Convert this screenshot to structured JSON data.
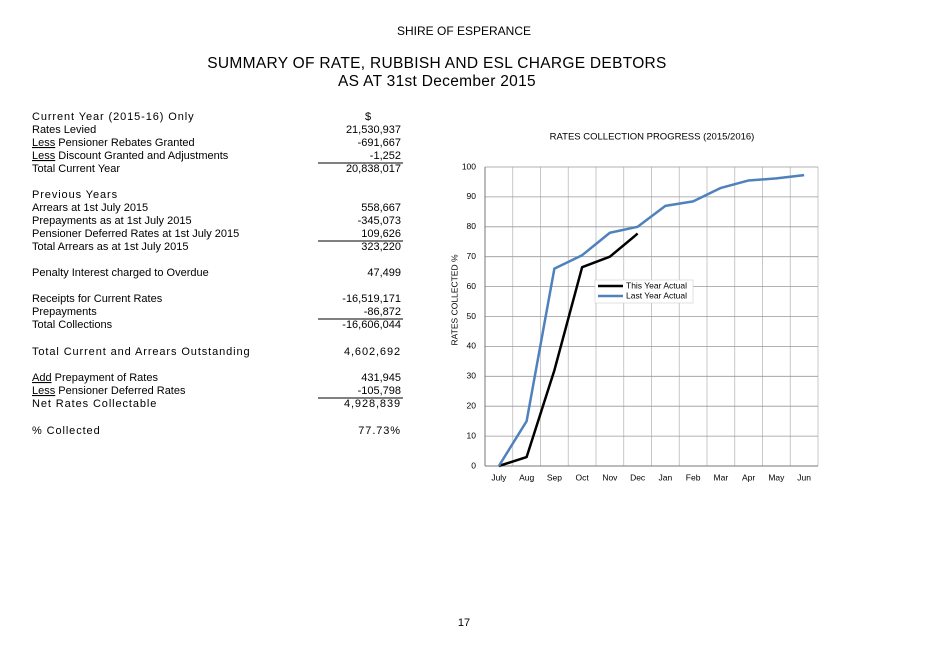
{
  "header": {
    "organisation": "SHIRE OF ESPERANCE",
    "title": "SUMMARY OF RATE, RUBBISH AND ESL CHARGE DEBTORS",
    "subtitle": "AS AT 31st December 2015"
  },
  "table": {
    "rows": [
      {
        "label": "Current Year (2015-16) Only",
        "value": "$",
        "emphasis": true
      },
      {
        "label": "Rates Levied",
        "value": "21,530,937"
      },
      {
        "prefix": "Less",
        "label": " Pensioner Rebates Granted",
        "value": "-691,667"
      },
      {
        "prefix": "Less",
        "label": " Discount Granted and Adjustments",
        "value": "-1,252",
        "underline": true
      },
      {
        "label": "Total Current Year",
        "value": "20,838,017"
      },
      {
        "label": "Previous Years",
        "emphasis": true
      },
      {
        "label": "Arrears at 1st July 2015",
        "value": "558,667"
      },
      {
        "label": "Prepayments as at 1st July 2015",
        "value": "-345,073"
      },
      {
        "label": "Pensioner Deferred Rates at 1st July 2015",
        "value": "109,626",
        "underline": true
      },
      {
        "label": "Total Arrears as at 1st July 2015",
        "value": "323,220"
      },
      {
        "label": "Penalty Interest charged to Overdue",
        "value": "47,499"
      },
      {
        "label": "Receipts for Current Rates",
        "value": "-16,519,171"
      },
      {
        "label": "Prepayments",
        "value": "-86,872",
        "underline": true
      },
      {
        "label": "Total Collections",
        "value": "-16,606,044"
      },
      {
        "label": "Total Current and Arrears Outstanding",
        "value": "4,602,692",
        "emphasis": true
      },
      {
        "prefix": "Add",
        "label": " Prepayment of Rates",
        "value": "431,945"
      },
      {
        "prefix": "Less",
        "label": " Pensioner Deferred Rates",
        "value": "-105,798",
        "underline": true
      },
      {
        "label": "Net Rates Collectable",
        "value": "4,928,839",
        "emphasis": true
      },
      {
        "label": "% Collected",
        "value": "77.73%",
        "emphasis": true
      }
    ]
  },
  "chart_data": {
    "type": "line",
    "title": "RATES COLLECTION PROGRESS (2015/2016)",
    "y_label": "RATES COLLECTED %",
    "categories": [
      "July",
      "Aug",
      "Sep",
      "Oct",
      "Nov",
      "Dec",
      "Jan",
      "Feb",
      "Mar",
      "Apr",
      "May",
      "Jun"
    ],
    "series": [
      {
        "name": "This Year Actual",
        "color": "#000000",
        "values": [
          0,
          3,
          32,
          66.5,
          70,
          77.73,
          null,
          null,
          null,
          null,
          null,
          null
        ]
      },
      {
        "name": "Last Year Actual",
        "color": "#4f81bd",
        "values": [
          0,
          15,
          66,
          70.5,
          78,
          80,
          87,
          88.5,
          93,
          95.5,
          96.2,
          97.3
        ]
      }
    ],
    "ylim": [
      0,
      100
    ],
    "yticks": [
      0,
      10,
      20,
      30,
      40,
      50,
      60,
      70,
      80,
      90,
      100
    ],
    "grid": true
  },
  "page_number": "17"
}
